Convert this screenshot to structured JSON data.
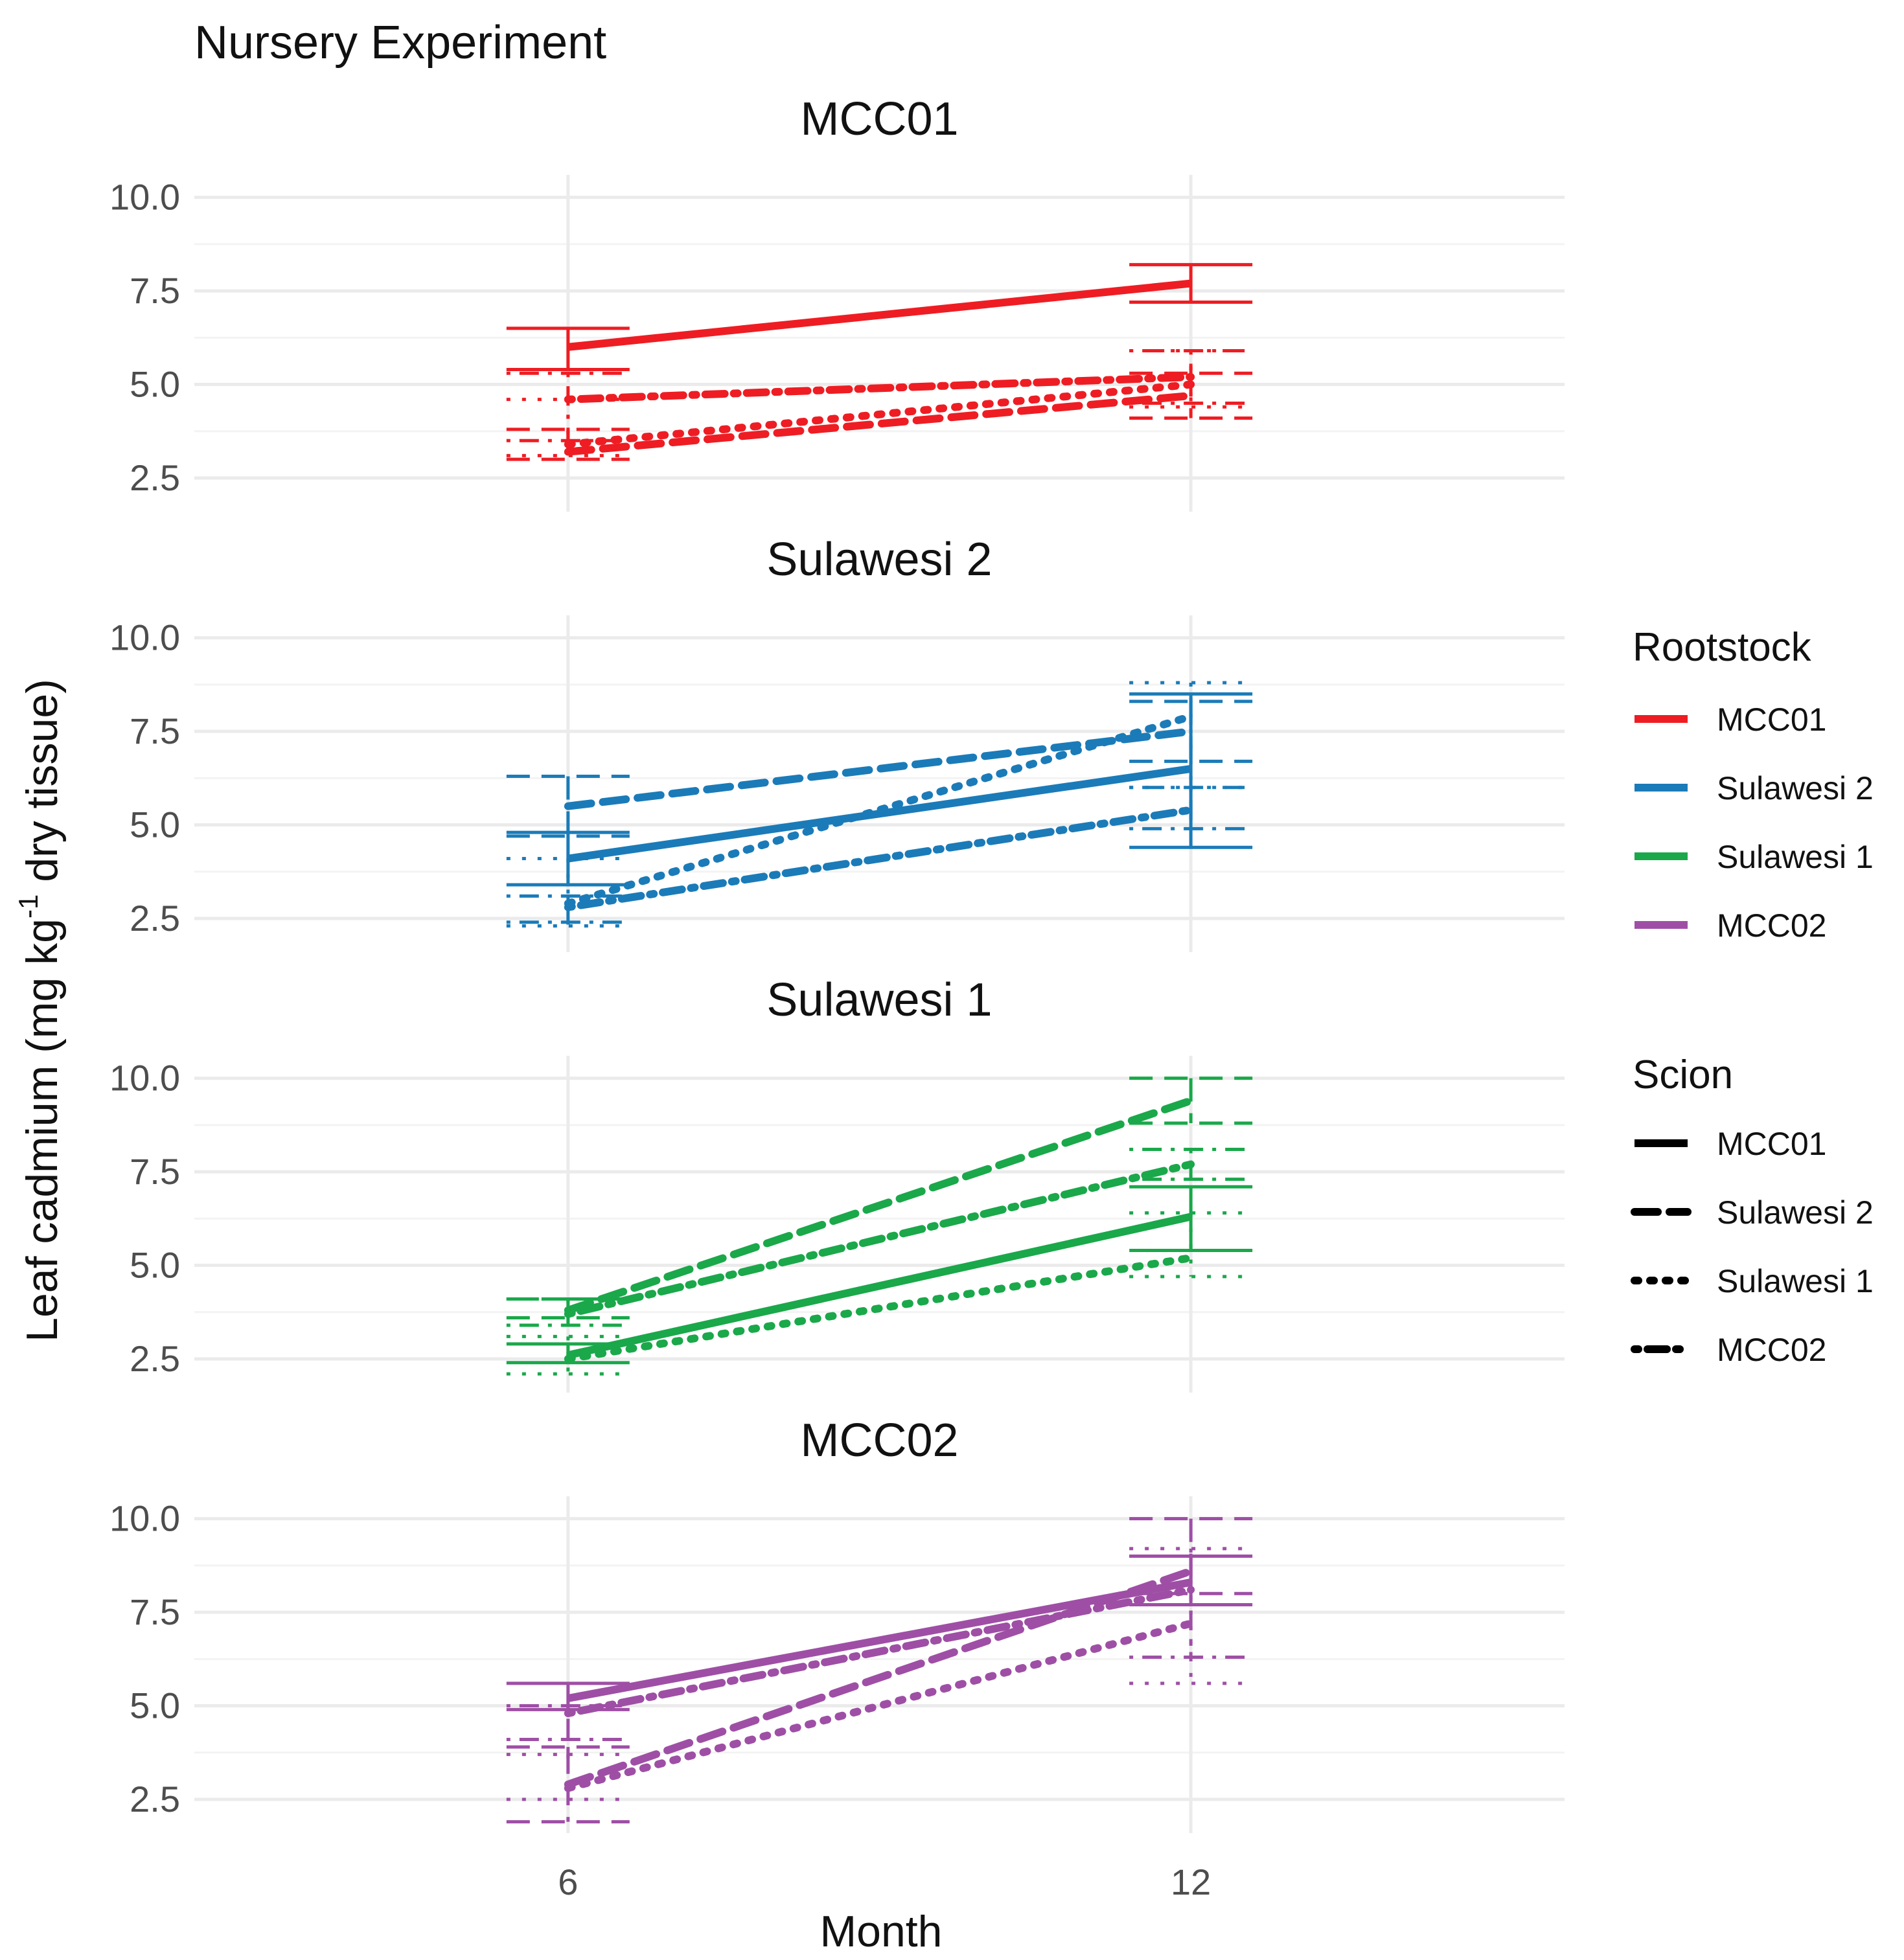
{
  "chart_data": {
    "type": "line",
    "title": "Nursery Experiment",
    "xlabel": "Month",
    "ylabel_main": "Leaf cadmium (mg kg",
    "ylabel_sup": "-1",
    "ylabel_rest": " dry tissue)",
    "x": [
      6,
      12
    ],
    "x_ticks": [
      "6",
      "12"
    ],
    "xlim": [
      2.4,
      15.6
    ],
    "y_ticks": [
      "2.5",
      "5.0",
      "7.5",
      "10.0"
    ],
    "ylim": [
      1.6,
      10.6
    ],
    "legend_position": "right",
    "legend_rootstock_title": "Rootstock",
    "legend_scion_title": "Scion",
    "rootstocks": [
      {
        "name": "MCC01",
        "color": "#ee1d23"
      },
      {
        "name": "Sulawesi 2",
        "color": "#1b7bb8"
      },
      {
        "name": "Sulawesi 1",
        "color": "#1aa84a"
      },
      {
        "name": "MCC02",
        "color": "#9e4fa5"
      }
    ],
    "scions": [
      {
        "name": "MCC01",
        "linetype": "solid"
      },
      {
        "name": "Sulawesi 2",
        "linetype": "dashed"
      },
      {
        "name": "Sulawesi 1",
        "linetype": "dotted"
      },
      {
        "name": "MCC02",
        "linetype": "dotdash"
      }
    ],
    "panels": [
      {
        "rootstock": "MCC01",
        "series": [
          {
            "scion": "MCC01",
            "values": [
              6.0,
              7.7
            ],
            "lower": [
              5.4,
              7.2
            ],
            "upper": [
              6.5,
              8.2
            ]
          },
          {
            "scion": "Sulawesi 2",
            "values": [
              3.2,
              4.7
            ],
            "lower": [
              3.0,
              4.1
            ],
            "upper": [
              3.8,
              5.3
            ]
          },
          {
            "scion": "Sulawesi 1",
            "values": [
              3.4,
              5.0
            ],
            "lower": [
              3.1,
              4.4
            ],
            "upper": [
              4.6,
              5.9
            ]
          },
          {
            "scion": "MCC02",
            "values": [
              4.6,
              5.2
            ],
            "lower": [
              3.5,
              4.5
            ],
            "upper": [
              5.3,
              5.9
            ]
          }
        ]
      },
      {
        "rootstock": "Sulawesi 2",
        "series": [
          {
            "scion": "MCC01",
            "values": [
              4.1,
              6.5
            ],
            "lower": [
              3.4,
              4.4
            ],
            "upper": [
              4.8,
              8.5
            ]
          },
          {
            "scion": "Sulawesi 2",
            "values": [
              5.5,
              7.5
            ],
            "lower": [
              4.7,
              6.7
            ],
            "upper": [
              6.3,
              8.3
            ]
          },
          {
            "scion": "Sulawesi 1",
            "values": [
              2.9,
              7.9
            ],
            "lower": [
              2.3,
              6.0
            ],
            "upper": [
              4.1,
              8.8
            ]
          },
          {
            "scion": "MCC02",
            "values": [
              2.8,
              5.4
            ],
            "lower": [
              2.4,
              4.9
            ],
            "upper": [
              3.1,
              6.0
            ]
          }
        ]
      },
      {
        "rootstock": "Sulawesi 1",
        "series": [
          {
            "scion": "MCC01",
            "values": [
              2.6,
              6.3
            ],
            "lower": [
              2.4,
              5.4
            ],
            "upper": [
              2.9,
              7.1
            ]
          },
          {
            "scion": "Sulawesi 2",
            "values": [
              3.8,
              9.4
            ],
            "lower": [
              3.6,
              8.8
            ],
            "upper": [
              4.1,
              10.0
            ]
          },
          {
            "scion": "Sulawesi 1",
            "values": [
              2.5,
              5.2
            ],
            "lower": [
              2.1,
              4.7
            ],
            "upper": [
              3.1,
              6.4
            ]
          },
          {
            "scion": "MCC02",
            "values": [
              3.7,
              7.7
            ],
            "lower": [
              3.4,
              7.3
            ],
            "upper": [
              4.1,
              8.1
            ]
          }
        ]
      },
      {
        "rootstock": "MCC02",
        "series": [
          {
            "scion": "MCC01",
            "values": [
              5.2,
              8.3
            ],
            "lower": [
              4.9,
              7.7
            ],
            "upper": [
              5.6,
              9.0
            ]
          },
          {
            "scion": "Sulawesi 2",
            "values": [
              2.9,
              8.6
            ],
            "lower": [
              1.9,
              8.0
            ],
            "upper": [
              3.9,
              10.0
            ]
          },
          {
            "scion": "Sulawesi 1",
            "values": [
              2.8,
              7.2
            ],
            "lower": [
              2.5,
              5.6
            ],
            "upper": [
              3.7,
              9.2
            ]
          },
          {
            "scion": "MCC02",
            "values": [
              4.8,
              8.1
            ],
            "lower": [
              4.1,
              6.3
            ],
            "upper": [
              5.0,
              9.0
            ]
          }
        ]
      }
    ]
  }
}
